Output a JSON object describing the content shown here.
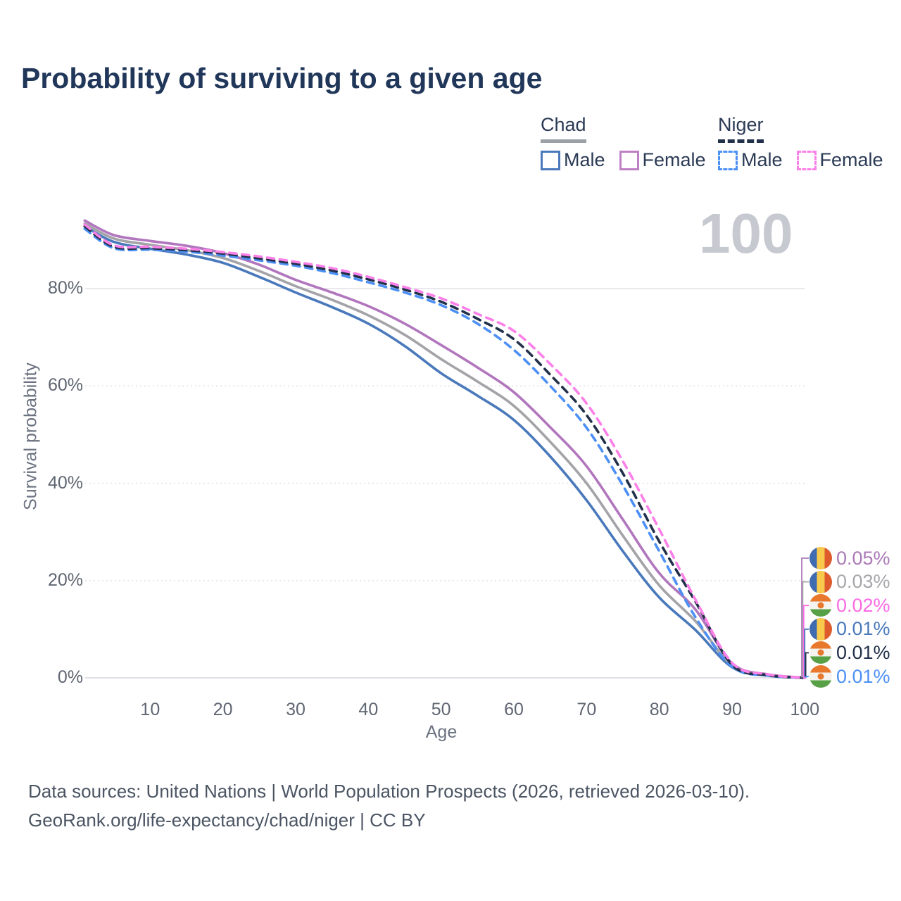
{
  "title": "Probability of surviving to a given age",
  "age_counter": "100",
  "legend": {
    "chad": {
      "label": "Chad",
      "male": "Male",
      "female": "Female"
    },
    "niger": {
      "label": "Niger",
      "male": "Male",
      "female": "Female"
    }
  },
  "y_axis": {
    "label": "Survival probability",
    "ticks": [
      "0%",
      "20%",
      "40%",
      "60%",
      "80%"
    ],
    "tick_values": [
      0,
      20,
      40,
      60,
      80
    ]
  },
  "x_axis": {
    "label": "Age",
    "ticks": [
      "10",
      "20",
      "30",
      "40",
      "50",
      "60",
      "70",
      "80",
      "90",
      "100"
    ],
    "tick_values": [
      10,
      20,
      30,
      40,
      50,
      60,
      70,
      80,
      90,
      100
    ]
  },
  "end_labels": [
    {
      "series": "chad-female",
      "flag": "chad-flag-icon",
      "value": "0.05%",
      "color": "#ab7ab8"
    },
    {
      "series": "chad-total",
      "flag": "chad-flag-icon",
      "value": "0.03%",
      "color": "#a7a7ac"
    },
    {
      "series": "niger-female",
      "flag": "niger-flag-icon",
      "value": "0.02%",
      "color": "#fb6ce4"
    },
    {
      "series": "chad-male",
      "flag": "chad-flag-icon",
      "value": "0.01%",
      "color": "#4a79bb"
    },
    {
      "series": "niger-total",
      "flag": "niger-flag-icon",
      "value": "0.01%",
      "color": "#22304a"
    },
    {
      "series": "niger-male",
      "flag": "niger-flag-icon",
      "value": "0.01%",
      "color": "#4d90f5"
    }
  ],
  "footer": {
    "line1": "Data sources: United Nations | World Population Prospects (2026, retrieved 2026-03-10).",
    "line2": "GeoRank.org/life-expectancy/chad/niger | CC BY"
  },
  "colors": {
    "title_text": "#21375a",
    "legend_text": "#2b3a55",
    "axis_text": "#5f6672",
    "watermark": "#c7c9d1",
    "gridline": "#e1e1e7",
    "chad_male": "#4a79bb",
    "chad_female": "#b176bd",
    "chad_total": "#a3a3a8",
    "niger_male": "#4d90f5",
    "niger_female": "#fb80e8",
    "niger_total": "#22304a"
  },
  "chart_data": {
    "type": "line",
    "title": "Probability of surviving to a given age",
    "xlabel": "Age",
    "ylabel": "Survival probability",
    "xlim": [
      0,
      100
    ],
    "ylim": [
      0,
      100
    ],
    "grid": "horizontal",
    "legend_position": "top-right",
    "x": [
      1,
      5,
      10,
      15,
      20,
      25,
      30,
      35,
      40,
      45,
      50,
      55,
      60,
      65,
      70,
      75,
      80,
      85,
      90,
      95,
      100
    ],
    "series": [
      {
        "name": "chad-male",
        "country": "Chad",
        "sex": "Male",
        "style": "solid",
        "color": "#4a79bb",
        "values": [
          92.8,
          89.6,
          88.2,
          87.0,
          85.3,
          82.4,
          79.2,
          76.2,
          72.8,
          68.2,
          62.6,
          58.0,
          53.0,
          45.5,
          36.5,
          26.0,
          16.5,
          9.8,
          2.2,
          0.45,
          0.01
        ]
      },
      {
        "name": "chad-total",
        "country": "Chad",
        "sex": "Both",
        "style": "solid",
        "color": "#a3a3a8",
        "values": [
          93.4,
          90.3,
          89.0,
          87.9,
          86.3,
          83.6,
          80.5,
          77.7,
          74.5,
          70.5,
          65.5,
          60.9,
          55.9,
          48.5,
          40.0,
          29.2,
          19.0,
          11.6,
          2.6,
          0.55,
          0.03
        ]
      },
      {
        "name": "chad-female",
        "country": "Chad",
        "sex": "Female",
        "style": "solid",
        "color": "#b176bd",
        "values": [
          94.0,
          91.0,
          89.8,
          88.8,
          87.3,
          84.9,
          81.8,
          79.2,
          76.4,
          72.8,
          68.4,
          63.8,
          58.7,
          51.5,
          43.5,
          32.5,
          21.5,
          14.0,
          3.0,
          0.7,
          0.05
        ]
      },
      {
        "name": "niger-male",
        "country": "Niger",
        "sex": "Male",
        "style": "dashed",
        "color": "#4d90f5",
        "values": [
          92.3,
          88.3,
          88.0,
          87.6,
          86.8,
          85.8,
          84.7,
          83.2,
          81.3,
          79.2,
          76.6,
          72.8,
          67.4,
          60.0,
          51.4,
          39.5,
          26.0,
          12.4,
          2.3,
          0.45,
          0.01
        ]
      },
      {
        "name": "niger-total",
        "country": "Niger",
        "sex": "Both",
        "style": "dashed",
        "color": "#22304a",
        "values": [
          92.8,
          88.6,
          88.3,
          87.9,
          87.2,
          86.2,
          85.1,
          83.7,
          81.9,
          79.8,
          77.3,
          73.8,
          69.6,
          62.3,
          54.0,
          42.0,
          28.0,
          15.6,
          2.7,
          0.55,
          0.01
        ]
      },
      {
        "name": "niger-female",
        "country": "Niger",
        "sex": "Female",
        "style": "dashed",
        "color": "#fb80e8",
        "values": [
          93.2,
          88.9,
          88.6,
          88.2,
          87.5,
          86.6,
          85.5,
          84.2,
          82.4,
          80.3,
          78.0,
          74.8,
          71.3,
          64.5,
          56.4,
          44.5,
          30.5,
          16.0,
          3.1,
          0.7,
          0.02
        ]
      }
    ]
  }
}
